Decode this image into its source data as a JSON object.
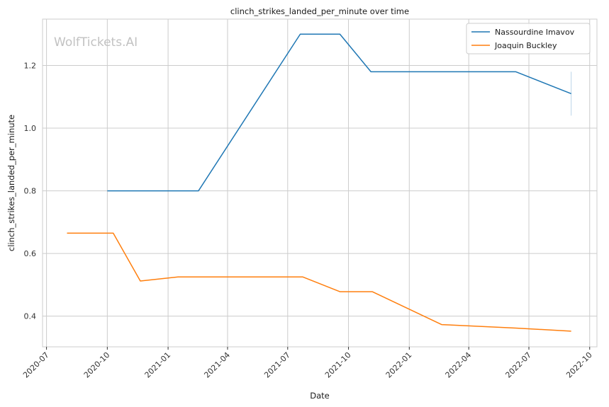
{
  "chart_data": {
    "type": "line",
    "title": "clinch_strikes_landed_per_minute over time",
    "xlabel": "Date",
    "ylabel": "clinch_strikes_landed_per_minute",
    "watermark": "WolfTickets.AI",
    "x_tick_labels": [
      "2020-07",
      "2020-10",
      "2021-01",
      "2021-04",
      "2021-07",
      "2021-10",
      "2022-01",
      "2022-04",
      "2022-07",
      "2022-10"
    ],
    "y_tick_labels": [
      "0.4",
      "0.6",
      "0.8",
      "1.0",
      "1.2"
    ],
    "y_ticks": [
      0.4,
      0.6,
      0.8,
      1.0,
      1.2
    ],
    "xlim": [
      "2020-06-25",
      "2022-10-12"
    ],
    "ylim": [
      0.302,
      1.348
    ],
    "grid": true,
    "legend_position": "top-right",
    "series": [
      {
        "name": "Nassourdine Imavov",
        "color": "#1f77b4",
        "points": [
          {
            "x": "2020-10-01",
            "y": 0.8
          },
          {
            "x": "2021-02-16",
            "y": 0.8
          },
          {
            "x": "2021-07-20",
            "y": 1.3
          },
          {
            "x": "2021-09-18",
            "y": 1.3
          },
          {
            "x": "2021-11-04",
            "y": 1.18
          },
          {
            "x": "2022-06-11",
            "y": 1.18
          },
          {
            "x": "2022-09-03",
            "y": 1.11
          }
        ],
        "error_bar": {
          "x": "2022-09-03",
          "low": 1.04,
          "high": 1.18
        }
      },
      {
        "name": "Joaquin Buckley",
        "color": "#ff7f0e",
        "points": [
          {
            "x": "2020-08-01",
            "y": 0.665
          },
          {
            "x": "2020-10-10",
            "y": 0.665
          },
          {
            "x": "2020-11-20",
            "y": 0.512
          },
          {
            "x": "2021-01-16",
            "y": 0.525
          },
          {
            "x": "2021-07-24",
            "y": 0.525
          },
          {
            "x": "2021-09-18",
            "y": 0.478
          },
          {
            "x": "2021-11-06",
            "y": 0.478
          },
          {
            "x": "2022-02-19",
            "y": 0.373
          },
          {
            "x": "2022-06-11",
            "y": 0.362
          },
          {
            "x": "2022-09-03",
            "y": 0.352
          }
        ]
      }
    ]
  }
}
